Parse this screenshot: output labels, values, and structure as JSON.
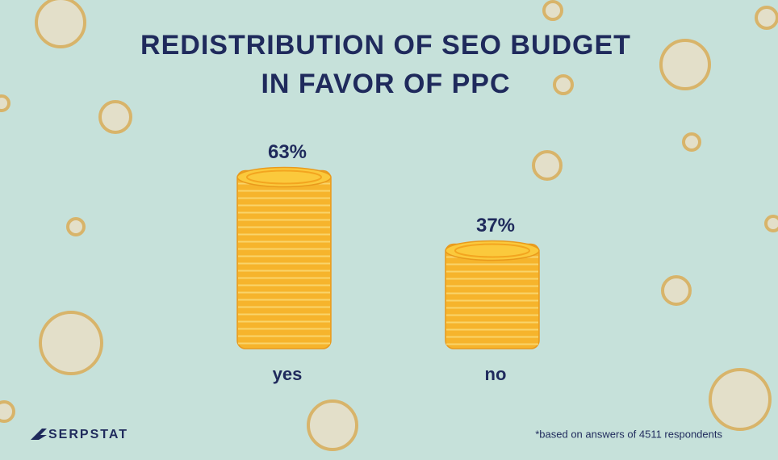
{
  "chart_data": {
    "type": "bar",
    "title": [
      "REDISTRIBUTION OF SEO BUDGET",
      "IN FAVOR OF PPC"
    ],
    "categories": [
      "yes",
      "no"
    ],
    "values": [
      63,
      37
    ],
    "value_labels": [
      "63%",
      "37%"
    ],
    "color": "#f6b42c",
    "brand": "SERPSTAT",
    "note": "*based on answers of 4511 respondents"
  }
}
